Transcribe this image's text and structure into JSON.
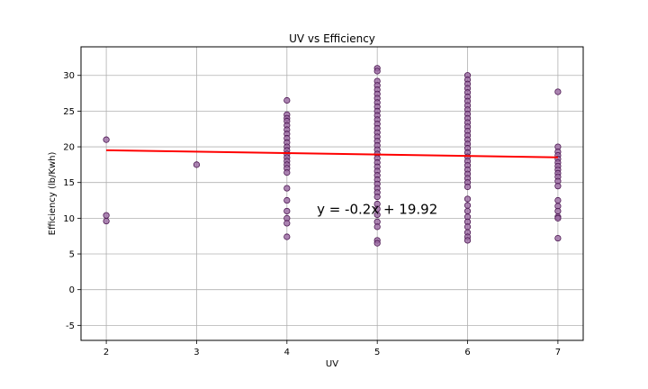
{
  "chart_data": {
    "type": "scatter",
    "title": "UV vs Efficiency",
    "xlabel": "UV",
    "ylabel": "Efficiency (lb/Kwh)",
    "xlim": [
      1.72,
      7.28
    ],
    "ylim": [
      -7.1,
      34.0
    ],
    "xticks": [
      2,
      3,
      4,
      5,
      6,
      7
    ],
    "yticks": [
      -5,
      0,
      5,
      10,
      15,
      20,
      25,
      30
    ],
    "grid": true,
    "colors": {
      "points_fill": "#9b6aa3",
      "points_edge": "#4a1550",
      "regression": "#ff0000"
    },
    "points": [
      {
        "x": 2,
        "y": 21.0
      },
      {
        "x": 2,
        "y": 10.4
      },
      {
        "x": 2,
        "y": 9.6
      },
      {
        "x": 3,
        "y": 17.5
      },
      {
        "x": 4,
        "y": 26.5
      },
      {
        "x": 4,
        "y": 24.5
      },
      {
        "x": 4,
        "y": 24.0
      },
      {
        "x": 4,
        "y": 23.6
      },
      {
        "x": 4,
        "y": 23.0
      },
      {
        "x": 4,
        "y": 22.4
      },
      {
        "x": 4,
        "y": 21.8
      },
      {
        "x": 4,
        "y": 21.2
      },
      {
        "x": 4,
        "y": 20.6
      },
      {
        "x": 4,
        "y": 20.0
      },
      {
        "x": 4,
        "y": 19.5
      },
      {
        "x": 4,
        "y": 19.0
      },
      {
        "x": 4,
        "y": 18.5
      },
      {
        "x": 4,
        "y": 18.0
      },
      {
        "x": 4,
        "y": 17.5
      },
      {
        "x": 4,
        "y": 17.0
      },
      {
        "x": 4,
        "y": 16.4
      },
      {
        "x": 4,
        "y": 14.2
      },
      {
        "x": 4,
        "y": 12.5
      },
      {
        "x": 4,
        "y": 11.0
      },
      {
        "x": 4,
        "y": 10.0
      },
      {
        "x": 4,
        "y": 9.3
      },
      {
        "x": 4,
        "y": 7.4
      },
      {
        "x": 5,
        "y": 31.0
      },
      {
        "x": 5,
        "y": 30.6
      },
      {
        "x": 5,
        "y": 29.2
      },
      {
        "x": 5,
        "y": 28.6
      },
      {
        "x": 5,
        "y": 28.0
      },
      {
        "x": 5,
        "y": 27.4
      },
      {
        "x": 5,
        "y": 26.8
      },
      {
        "x": 5,
        "y": 26.2
      },
      {
        "x": 5,
        "y": 25.6
      },
      {
        "x": 5,
        "y": 25.0
      },
      {
        "x": 5,
        "y": 24.4
      },
      {
        "x": 5,
        "y": 23.8
      },
      {
        "x": 5,
        "y": 23.2
      },
      {
        "x": 5,
        "y": 22.6
      },
      {
        "x": 5,
        "y": 22.0
      },
      {
        "x": 5,
        "y": 21.4
      },
      {
        "x": 5,
        "y": 20.8
      },
      {
        "x": 5,
        "y": 20.2
      },
      {
        "x": 5,
        "y": 19.6
      },
      {
        "x": 5,
        "y": 19.0
      },
      {
        "x": 5,
        "y": 18.4
      },
      {
        "x": 5,
        "y": 17.8
      },
      {
        "x": 5,
        "y": 17.2
      },
      {
        "x": 5,
        "y": 16.6
      },
      {
        "x": 5,
        "y": 16.0
      },
      {
        "x": 5,
        "y": 15.4
      },
      {
        "x": 5,
        "y": 14.8
      },
      {
        "x": 5,
        "y": 14.2
      },
      {
        "x": 5,
        "y": 13.6
      },
      {
        "x": 5,
        "y": 13.0
      },
      {
        "x": 5,
        "y": 12.0
      },
      {
        "x": 5,
        "y": 11.3
      },
      {
        "x": 5,
        "y": 10.5
      },
      {
        "x": 5,
        "y": 9.5
      },
      {
        "x": 5,
        "y": 8.8
      },
      {
        "x": 5,
        "y": 6.9
      },
      {
        "x": 5,
        "y": 6.5
      },
      {
        "x": 6,
        "y": 30.0
      },
      {
        "x": 6,
        "y": 29.4
      },
      {
        "x": 6,
        "y": 28.8
      },
      {
        "x": 6,
        "y": 28.2
      },
      {
        "x": 6,
        "y": 27.6
      },
      {
        "x": 6,
        "y": 27.0
      },
      {
        "x": 6,
        "y": 26.4
      },
      {
        "x": 6,
        "y": 25.8
      },
      {
        "x": 6,
        "y": 25.2
      },
      {
        "x": 6,
        "y": 24.6
      },
      {
        "x": 6,
        "y": 24.0
      },
      {
        "x": 6,
        "y": 23.4
      },
      {
        "x": 6,
        "y": 22.8
      },
      {
        "x": 6,
        "y": 22.2
      },
      {
        "x": 6,
        "y": 21.6
      },
      {
        "x": 6,
        "y": 21.0
      },
      {
        "x": 6,
        "y": 20.4
      },
      {
        "x": 6,
        "y": 19.8
      },
      {
        "x": 6,
        "y": 19.2
      },
      {
        "x": 6,
        "y": 18.6
      },
      {
        "x": 6,
        "y": 18.0
      },
      {
        "x": 6,
        "y": 17.4
      },
      {
        "x": 6,
        "y": 16.8
      },
      {
        "x": 6,
        "y": 16.2
      },
      {
        "x": 6,
        "y": 15.6
      },
      {
        "x": 6,
        "y": 15.0
      },
      {
        "x": 6,
        "y": 14.4
      },
      {
        "x": 6,
        "y": 12.7
      },
      {
        "x": 6,
        "y": 11.8
      },
      {
        "x": 6,
        "y": 11.0
      },
      {
        "x": 6,
        "y": 10.2
      },
      {
        "x": 6,
        "y": 9.5
      },
      {
        "x": 6,
        "y": 8.8
      },
      {
        "x": 6,
        "y": 8.0
      },
      {
        "x": 6,
        "y": 7.4
      },
      {
        "x": 6,
        "y": 6.9
      },
      {
        "x": 7,
        "y": 27.7
      },
      {
        "x": 7,
        "y": 20.0
      },
      {
        "x": 7,
        "y": 19.3
      },
      {
        "x": 7,
        "y": 18.8
      },
      {
        "x": 7,
        "y": 18.3
      },
      {
        "x": 7,
        "y": 17.8
      },
      {
        "x": 7,
        "y": 17.3
      },
      {
        "x": 7,
        "y": 16.8
      },
      {
        "x": 7,
        "y": 16.3
      },
      {
        "x": 7,
        "y": 15.8
      },
      {
        "x": 7,
        "y": 15.2
      },
      {
        "x": 7,
        "y": 14.5
      },
      {
        "x": 7,
        "y": 12.5
      },
      {
        "x": 7,
        "y": 11.7
      },
      {
        "x": 7,
        "y": 11.0
      },
      {
        "x": 7,
        "y": 10.2
      },
      {
        "x": 7,
        "y": 10.0
      },
      {
        "x": 7,
        "y": 7.2
      }
    ],
    "regression": {
      "slope": -0.2,
      "intercept": 19.92,
      "x_range": [
        2,
        7
      ],
      "equation_label": "y = -0.2x + 19.92",
      "label_at": {
        "x": 5.0,
        "y": 10.6
      }
    }
  }
}
